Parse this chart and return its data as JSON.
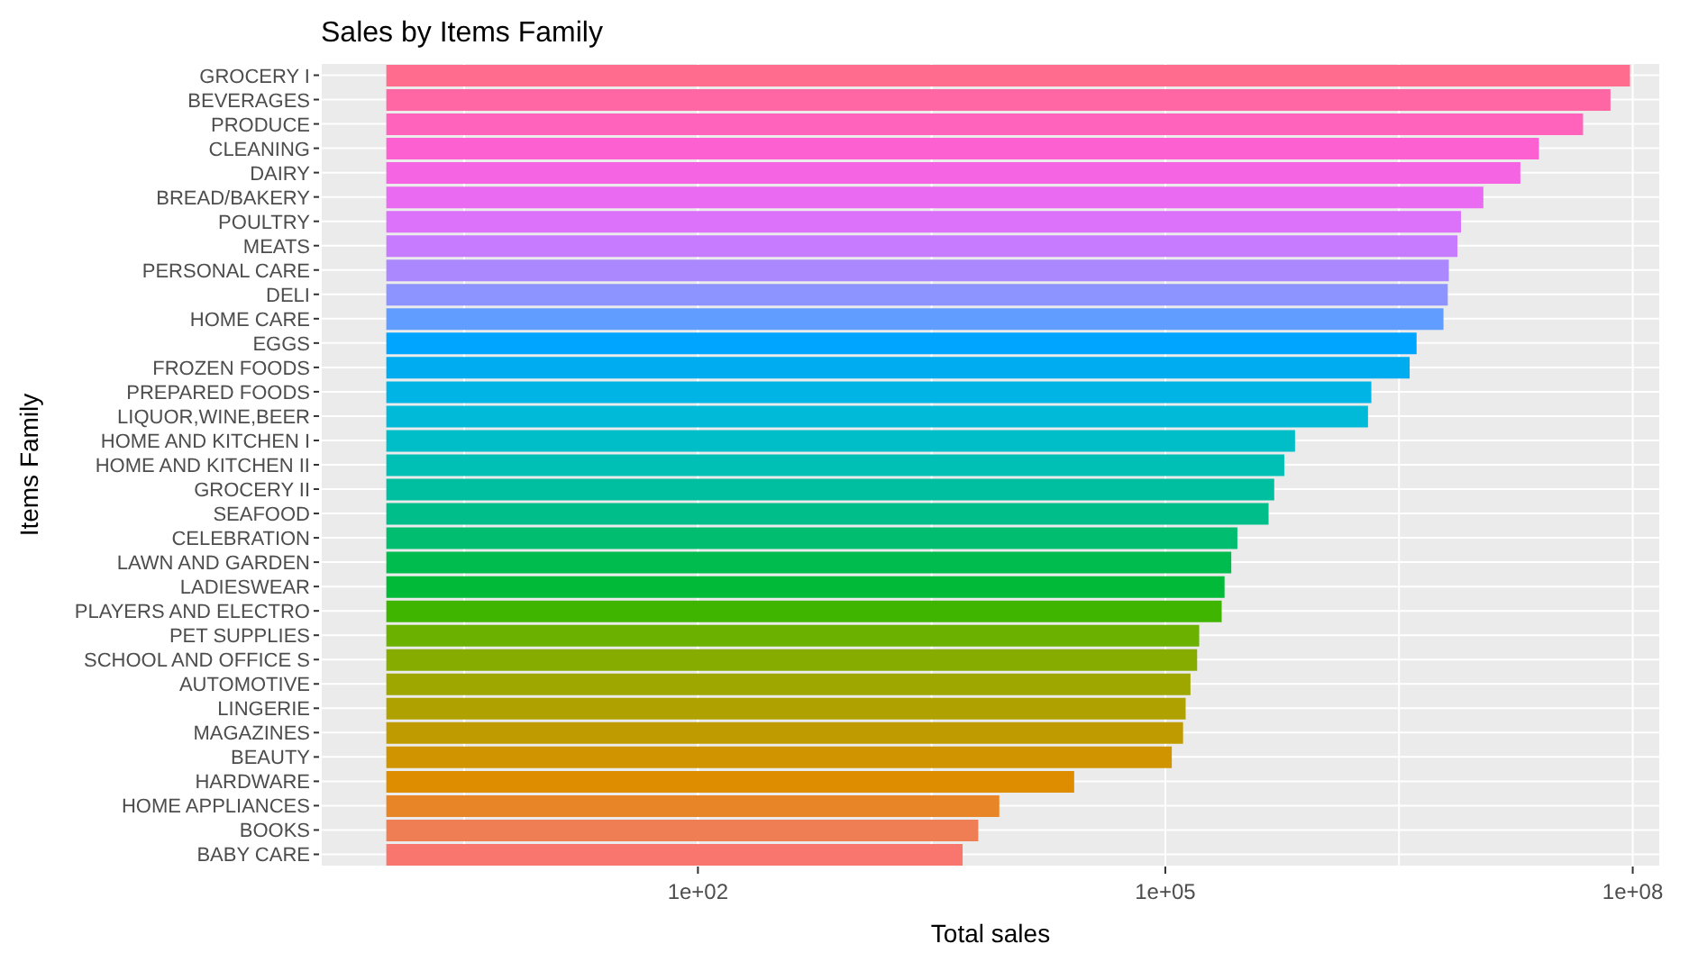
{
  "chart_data": {
    "type": "bar",
    "orientation": "horizontal",
    "title": "Sales by Items Family",
    "xlabel": "Total sales",
    "ylabel": "Items Family",
    "categories": [
      "GROCERY I",
      "BEVERAGES",
      "PRODUCE",
      "CLEANING",
      "DAIRY",
      "BREAD/BAKERY",
      "POULTRY",
      "MEATS",
      "PERSONAL CARE",
      "DELI",
      "HOME CARE",
      "EGGS",
      "FROZEN FOODS",
      "PREPARED FOODS",
      "LIQUOR,WINE,BEER",
      "HOME AND KITCHEN I",
      "HOME AND KITCHEN II",
      "GROCERY II",
      "SEAFOOD",
      "CELEBRATION",
      "LAWN AND GARDEN",
      "LADIESWEAR",
      "PLAYERS AND ELECTRO",
      "PET SUPPLIES",
      "SCHOOL AND OFFICE S",
      "AUTOMOTIVE",
      "LINGERIE",
      "MAGAZINES",
      "BEAUTY",
      "HARDWARE",
      "HOME APPLIANCES",
      "BOOKS",
      "BABY CARE"
    ],
    "values": [
      95999999,
      71999999,
      47999999,
      24999999,
      18999999,
      10999999,
      7899999,
      7499999,
      6599999,
      6499999,
      6099999,
      4099999,
      3699999,
      2099999,
      1999999,
      679999,
      579999,
      499999,
      459999,
      289999,
      264999,
      239999,
      229999,
      164999,
      159999,
      144999,
      134999,
      129999,
      109999,
      25999,
      8599,
      6299,
      4999
    ],
    "base": [
      1,
      1,
      1,
      1,
      1,
      1,
      1,
      1,
      1,
      1,
      1,
      1,
      1,
      1,
      1,
      1,
      1,
      1,
      1,
      1,
      1,
      1,
      1,
      1,
      1,
      1,
      1,
      1,
      1,
      1,
      1,
      1,
      1
    ],
    "colors": [
      "#FF6C8E",
      "#FF67A4",
      "#FF63BC",
      "#FD61D1",
      "#F564E3",
      "#EA6AF1",
      "#DC71FA",
      "#C77CFF",
      "#AC88FF",
      "#8D93FF",
      "#619CFF",
      "#00A5FF",
      "#00ACF0",
      "#00B4E5",
      "#00BAD8",
      "#00BEC8",
      "#00C0B5",
      "#00BFA0",
      "#00BE89",
      "#00BD6F",
      "#00BB4E",
      "#00BA38",
      "#3FB500",
      "#6BB100",
      "#86AC00",
      "#9DA700",
      "#AFA100",
      "#C09B00",
      "#D09400",
      "#DE8C00",
      "#E88526",
      "#F07E55",
      "#F8766D"
    ],
    "log": "x",
    "xlim": [
      0.38,
      150000000
    ],
    "xticks": [
      {
        "value": 3.16,
        "label": null
      },
      {
        "value": 100,
        "label": "1e+02"
      },
      {
        "value": 3162,
        "label": null
      },
      {
        "value": 100000,
        "label": "1e+05"
      },
      {
        "value": 3162000,
        "label": null
      },
      {
        "value": 100000000,
        "label": "1e+08"
      }
    ],
    "grid": true
  }
}
